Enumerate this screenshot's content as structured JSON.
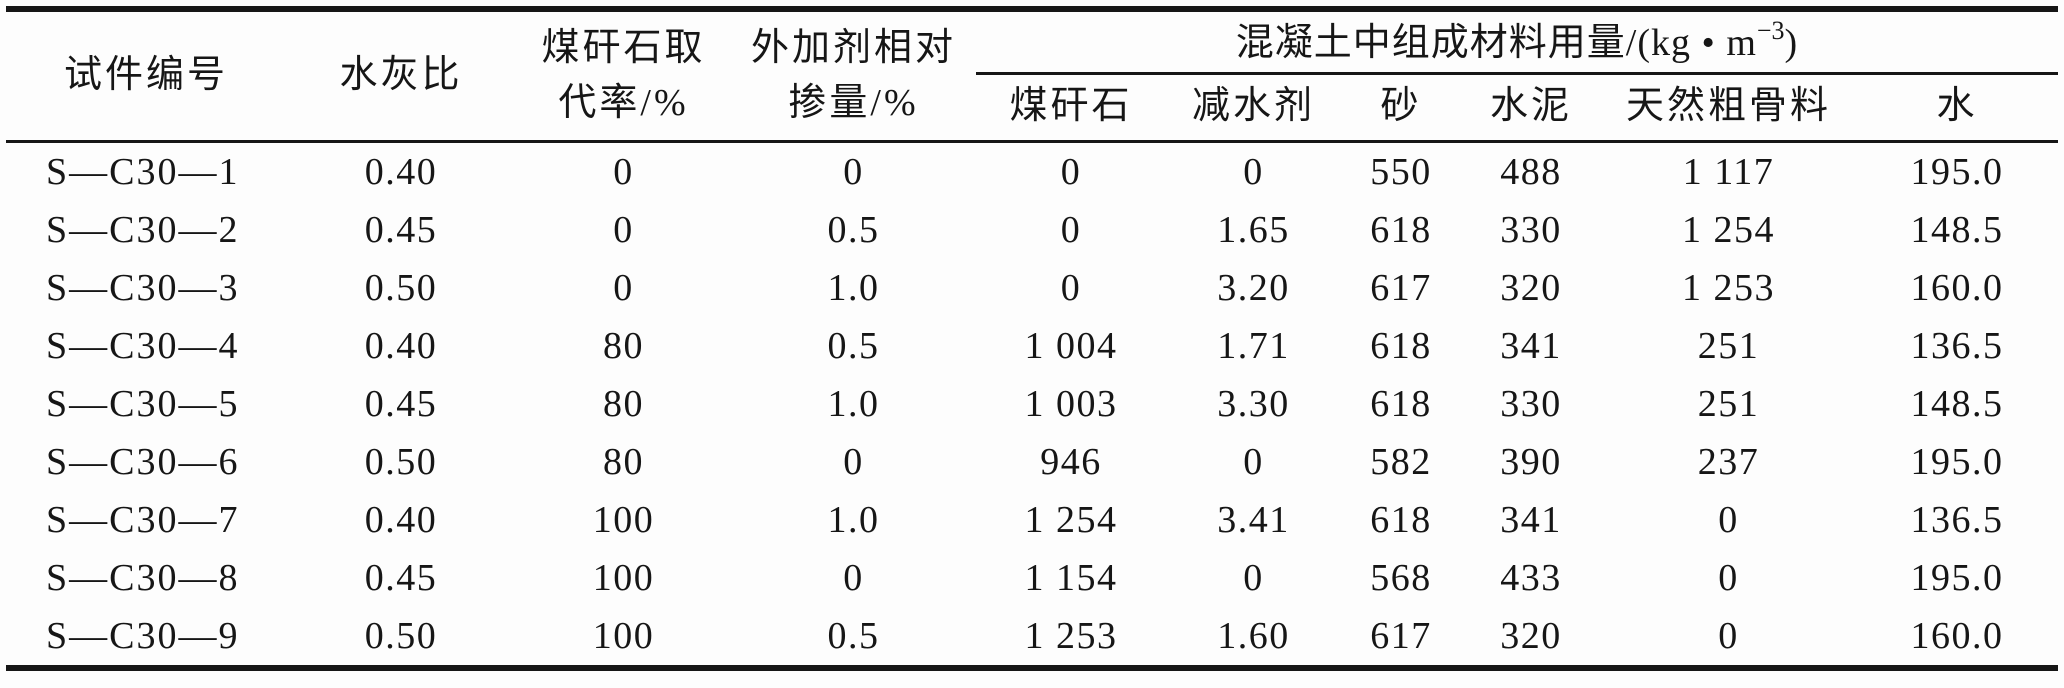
{
  "table": {
    "headers": {
      "specimen": "试件编号",
      "water_cement_ratio": "水灰比",
      "gangue_replacement": "煤矸石取\n代率/%",
      "admixture_dosage": "外加剂相对\n掺量/%",
      "group_title_main": "混凝土中组成材料用量/(kg • m",
      "group_title_sup": "−3",
      "group_title_close": ")",
      "sub": [
        "煤矸石",
        "减水剂",
        "砂",
        "水泥",
        "天然粗骨料",
        "水"
      ]
    },
    "rows": [
      [
        "S—C30—1",
        "0.40",
        "0",
        "0",
        "0",
        "0",
        "550",
        "488",
        "1 117",
        "195.0"
      ],
      [
        "S—C30—2",
        "0.45",
        "0",
        "0.5",
        "0",
        "1.65",
        "618",
        "330",
        "1 254",
        "148.5"
      ],
      [
        "S—C30—3",
        "0.50",
        "0",
        "1.0",
        "0",
        "3.20",
        "617",
        "320",
        "1 253",
        "160.0"
      ],
      [
        "S—C30—4",
        "0.40",
        "80",
        "0.5",
        "1 004",
        "1.71",
        "618",
        "341",
        "251",
        "136.5"
      ],
      [
        "S—C30—5",
        "0.45",
        "80",
        "1.0",
        "1 003",
        "3.30",
        "618",
        "330",
        "251",
        "148.5"
      ],
      [
        "S—C30—6",
        "0.50",
        "80",
        "0",
        "946",
        "0",
        "582",
        "390",
        "237",
        "195.0"
      ],
      [
        "S—C30—7",
        "0.40",
        "100",
        "1.0",
        "1 254",
        "3.41",
        "618",
        "341",
        "0",
        "136.5"
      ],
      [
        "S—C30—8",
        "0.45",
        "100",
        "0",
        "1 154",
        "0",
        "568",
        "433",
        "0",
        "195.0"
      ],
      [
        "S—C30—9",
        "0.50",
        "100",
        "0.5",
        "1 253",
        "1.60",
        "617",
        "320",
        "0",
        "160.0"
      ]
    ]
  }
}
